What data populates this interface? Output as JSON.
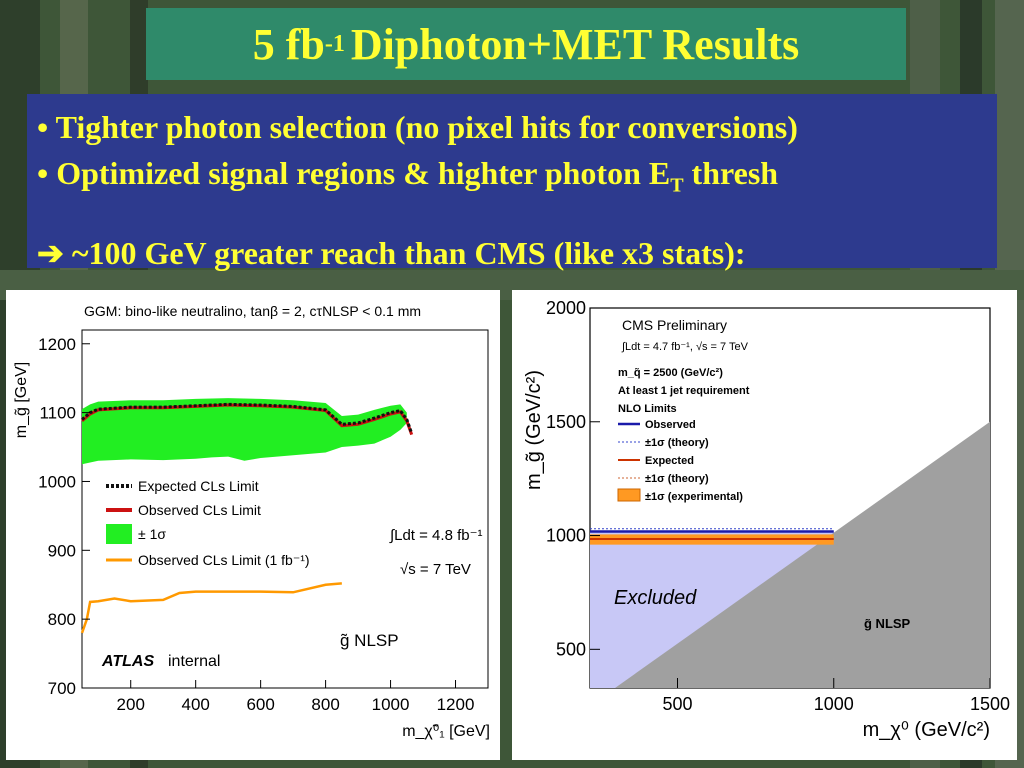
{
  "slide": {
    "title_main": "5 fb",
    "title_sup": "-1",
    "title_rest": "Diphoton+MET Results",
    "bullet1": "• Tighter photon selection (no pixel hits for conversions)",
    "bullet2_pre": "• Optimized signal regions & highter photon E",
    "bullet2_sub": "T",
    "bullet2_post": " thresh",
    "arrow_glyph": "➔",
    "arrow_text": " ~100 GeV greater reach than CMS (like x3 stats):"
  },
  "chart_data": [
    {
      "type": "line",
      "title": "GGM: bino-like neutralino, tanβ = 2, cτNLSP < 0.1 mm",
      "xlabel": "m_χ̃⁰₁ [GeV]",
      "ylabel": "m_g̃ [GeV]",
      "xlim": [
        50,
        1300
      ],
      "ylim": [
        700,
        1220
      ],
      "xticks": [
        200,
        400,
        600,
        800,
        1000,
        1200
      ],
      "yticks": [
        700,
        800,
        900,
        1000,
        1100,
        1200
      ],
      "legend": [
        "Expected CLs Limit",
        "Observed CLs Limit",
        "± 1σ",
        "Observed CLs Limit (1 fb⁻¹)"
      ],
      "labels": {
        "lumi": "∫Ldt = 4.8 fb⁻¹",
        "sqrts": "√s = 7 TeV",
        "nlsp": "g̃ NLSP",
        "atlas": "ATLAS",
        "internal": "internal"
      },
      "series": [
        {
          "name": "Expected CLs Limit",
          "x": [
            50,
            75,
            100,
            200,
            300,
            400,
            500,
            600,
            700,
            800,
            850,
            900,
            950,
            1000,
            1030,
            1050,
            1065
          ],
          "y": [
            1090,
            1100,
            1105,
            1108,
            1108,
            1110,
            1112,
            1111,
            1109,
            1104,
            1083,
            1085,
            1092,
            1100,
            1103,
            1090,
            1070
          ]
        },
        {
          "name": "Observed CLs Limit",
          "x": [
            50,
            75,
            100,
            200,
            300,
            400,
            500,
            600,
            700,
            800,
            850,
            900,
            950,
            1000,
            1030,
            1050,
            1065
          ],
          "y": [
            1088,
            1098,
            1104,
            1107,
            1107,
            1109,
            1111,
            1110,
            1108,
            1103,
            1081,
            1083,
            1090,
            1098,
            1101,
            1088,
            1068
          ]
        },
        {
          "name": "± 1σ upper",
          "x": [
            50,
            75,
            100,
            200,
            300,
            400,
            500,
            600,
            700,
            800,
            850,
            900,
            950,
            1000,
            1030,
            1050
          ],
          "y": [
            1105,
            1112,
            1116,
            1118,
            1118,
            1120,
            1121,
            1120,
            1118,
            1114,
            1095,
            1097,
            1104,
            1110,
            1112,
            1100
          ]
        },
        {
          "name": "± 1σ lower",
          "x": [
            50,
            100,
            200,
            300,
            400,
            450,
            500,
            550,
            600,
            700,
            750,
            800,
            850,
            900,
            950,
            1000,
            1030,
            1050
          ],
          "y": [
            1025,
            1030,
            1032,
            1031,
            1033,
            1035,
            1036,
            1030,
            1034,
            1038,
            1040,
            1042,
            1050,
            1052,
            1055,
            1065,
            1075,
            1085
          ]
        },
        {
          "name": "Observed CLs Limit (1 fb⁻¹)",
          "x": [
            50,
            65,
            75,
            100,
            150,
            200,
            300,
            350,
            400,
            500,
            600,
            700,
            800,
            850
          ],
          "y": [
            780,
            800,
            825,
            826,
            830,
            826,
            828,
            838,
            840,
            840,
            840,
            839,
            850,
            852
          ]
        }
      ],
      "excluded_region_label": "g̃ NLSP"
    },
    {
      "type": "line",
      "title": "CMS Preliminary",
      "xlabel": "m_χ⁰ (GeV/c²)",
      "ylabel": "m_g̃ (GeV/c²)",
      "xlim": [
        220,
        1500
      ],
      "ylim": [
        330,
        2000
      ],
      "xticks": [
        500,
        1000,
        1500
      ],
      "yticks": [
        500,
        1000,
        1500,
        2000
      ],
      "legend": [
        "Observed",
        "±1σ (theory)",
        "Expected",
        "±1σ (theory)",
        "±1σ (experimental)"
      ],
      "labels": {
        "lumi": "∫Ldt = 4.7 fb⁻¹, √s = 7 TeV",
        "msq": "m_q̃ = 2500 (GeV/c²)",
        "jet": "At least 1 jet requirement",
        "nlo": "NLO Limits",
        "excluded": "Excluded",
        "nlsp": "g̃ NLSP"
      },
      "series": [
        {
          "name": "Observed",
          "x": [
            220,
            1000
          ],
          "y": [
            1018,
            1018
          ]
        },
        {
          "name": "Expected",
          "x": [
            220,
            1000
          ],
          "y": [
            985,
            985
          ]
        },
        {
          "name": "±1σ (experimental)",
          "x": [
            220,
            1000
          ],
          "y": [
            960,
            1005
          ]
        }
      ]
    }
  ]
}
